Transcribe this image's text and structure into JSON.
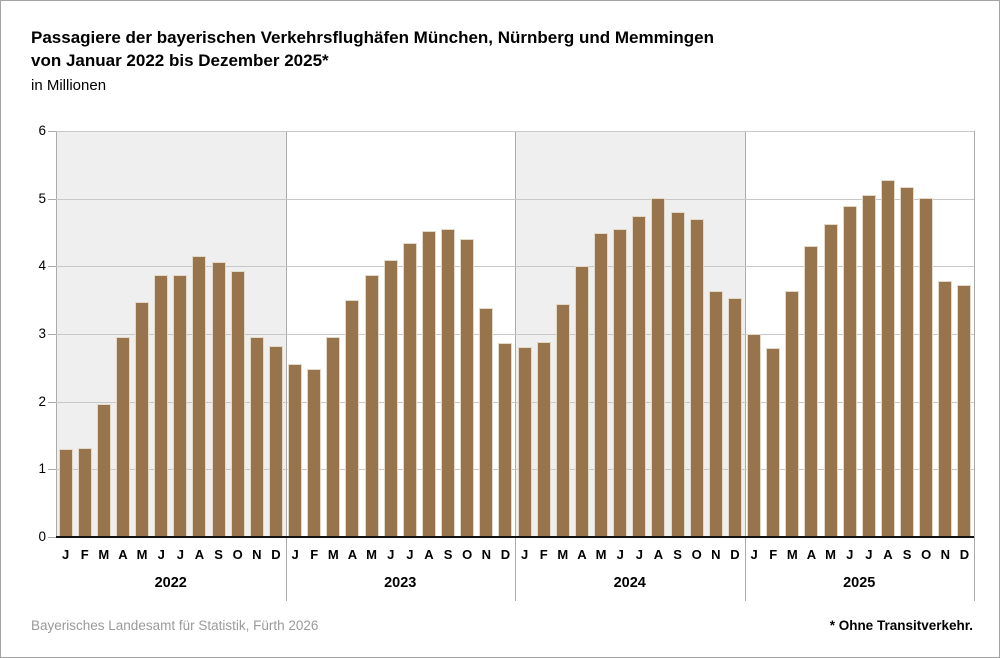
{
  "title": {
    "line1": "Passagiere der bayerischen Verkehrsflughäfen München, Nürnberg und Memmingen",
    "line2": "von Januar 2022 bis Dezember 2025*",
    "subtitle": "in Millionen"
  },
  "footer": {
    "source": "Bayerisches Landesamt für Statistik, Fürth 2026",
    "note": "* Ohne Transitverkehr."
  },
  "colors": {
    "bar": "#97744b",
    "bar_edge": "#e3d9c8",
    "year_band": "#efefef",
    "gridline": "#c8c8c8",
    "separator": "#ababab",
    "zero_axis": "#111111",
    "source_text": "#9a9a9a"
  },
  "chart_data": {
    "type": "bar",
    "title": "Passagiere der bayerischen Verkehrsflughäfen München, Nürnberg und Memmingen von Januar 2022 bis Dezember 2025*",
    "ylabel": "in Millionen",
    "xlabel": "",
    "ylim": [
      0,
      6
    ],
    "yticks": [
      0,
      1,
      2,
      3,
      4,
      5,
      6
    ],
    "grid": true,
    "legend": false,
    "month_labels": [
      "J",
      "F",
      "M",
      "A",
      "M",
      "J",
      "J",
      "A",
      "S",
      "O",
      "N",
      "D"
    ],
    "groups": [
      {
        "year": "2022",
        "shaded": true,
        "values": [
          1.3,
          1.32,
          1.97,
          2.96,
          3.48,
          3.87,
          3.87,
          4.15,
          4.06,
          3.93,
          2.96,
          2.82
        ]
      },
      {
        "year": "2023",
        "shaded": false,
        "values": [
          2.56,
          2.48,
          2.95,
          3.5,
          3.87,
          4.1,
          4.35,
          4.52,
          4.55,
          4.4,
          3.38,
          2.86
        ]
      },
      {
        "year": "2024",
        "shaded": true,
        "values": [
          2.81,
          2.88,
          3.44,
          4.01,
          4.49,
          4.55,
          4.74,
          5.01,
          4.8,
          4.7,
          3.63,
          3.53
        ]
      },
      {
        "year": "2025",
        "shaded": false,
        "values": [
          3.0,
          2.8,
          3.63,
          4.3,
          4.62,
          4.89,
          5.06,
          5.27,
          5.17,
          5.01,
          3.79,
          3.72
        ]
      }
    ]
  }
}
